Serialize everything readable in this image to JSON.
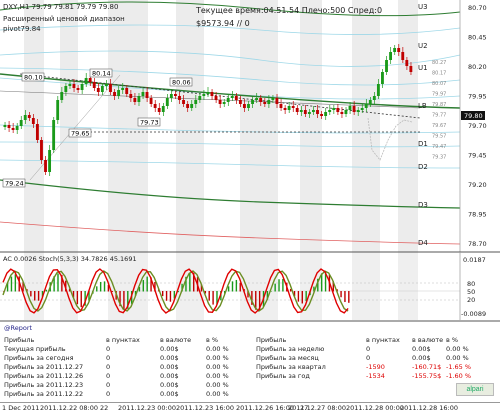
{
  "chart_header": {
    "symbol_line": "DXY,H1  79.79 79.81 79.79 79.80",
    "range_label": "Расширенный ценовой диапазон",
    "pivot_label": "pivot79.84",
    "time_line": "Текущее время:04.51.54 Плечо:500 Спред:0",
    "balance_line": "$9573.94   // 0"
  },
  "level_labels": {
    "u3": "U3",
    "u2": "U2",
    "u1": "U1",
    "lb": "LB",
    "d1": "D1",
    "d2": "D2",
    "d3": "D3",
    "d4": "D4"
  },
  "price_tags": {
    "p80_10_left": "80.10",
    "p80_14": "80.14",
    "p80_06": "80.06",
    "p79_65": "79.65",
    "p79_73": "79.73",
    "p79_24": "79.24",
    "current": "79.80"
  },
  "price_axis": [
    "80.70",
    "80.45",
    "80.20",
    "79.95",
    "79.70",
    "79.45",
    "79.20",
    "78.95",
    "78.70"
  ],
  "ladder": [
    "80.27",
    "80.17",
    "80.07",
    "79.97",
    "79.87",
    "79.77",
    "79.67",
    "79.57",
    "79.47",
    "79.37"
  ],
  "indicator": {
    "label": "AC 0.0026  Stoch(5,3,3) 34.7826 45.1691",
    "axis": [
      "0.0187",
      "80",
      "50",
      "20",
      "-0.0089"
    ]
  },
  "report": {
    "title": "@Report",
    "left_headers": [
      "Прибыль",
      "в пунктах",
      "в валюте",
      "в %"
    ],
    "left_rows": [
      [
        "Текущая прибыль",
        "0",
        "0.00$",
        "0.00 %"
      ],
      [
        "Прибыль за сегодня",
        "0",
        "0.00$",
        "0.00 %"
      ],
      [
        "Прибыль за 2011.12.27",
        "0",
        "0.00$",
        "0.00 %"
      ],
      [
        "Прибыль за 2011.12.26",
        "0",
        "0.00$",
        "0.00 %"
      ],
      [
        "Прибыль за 2011.12.23",
        "0",
        "0.00$",
        "0.00 %"
      ],
      [
        "Прибыль за 2011.12.22",
        "0",
        "0.00$",
        "0.00 %"
      ]
    ],
    "right_headers": [
      "Прибыль",
      "в пунктах",
      "в валюте",
      "в %"
    ],
    "right_rows": [
      [
        "Прибыль за неделю",
        "0",
        "0.00$",
        "0.00 %"
      ],
      [
        "Прибыль за месяц",
        "0",
        "0.00$",
        "0.00 %"
      ],
      [
        "Прибыль за квартал",
        "-1590",
        "-160.71$",
        "-1.65 %"
      ],
      [
        "Прибыль за год",
        "-1534",
        "-155.75$",
        "-1.60 %"
      ]
    ],
    "brand": "alpari"
  },
  "time_axis": [
    "1 Dec 2011",
    "2011.12.22 08:00",
    "22",
    "2011.12.23 00:00",
    "2011.12.23 16:00",
    "2011.12.26 16:00",
    "2011.12.27 08:00",
    "27",
    "2011.12.28 00:00",
    "2011.12.28 16:00"
  ],
  "colors": {
    "candle_up": "#1a9a1a",
    "candle_down": "#c00000",
    "stoch_main": "#e00000",
    "stoch_signal": "#6b8e23",
    "level_line": "#2e7d32",
    "trend_dashed": "#333333"
  }
}
